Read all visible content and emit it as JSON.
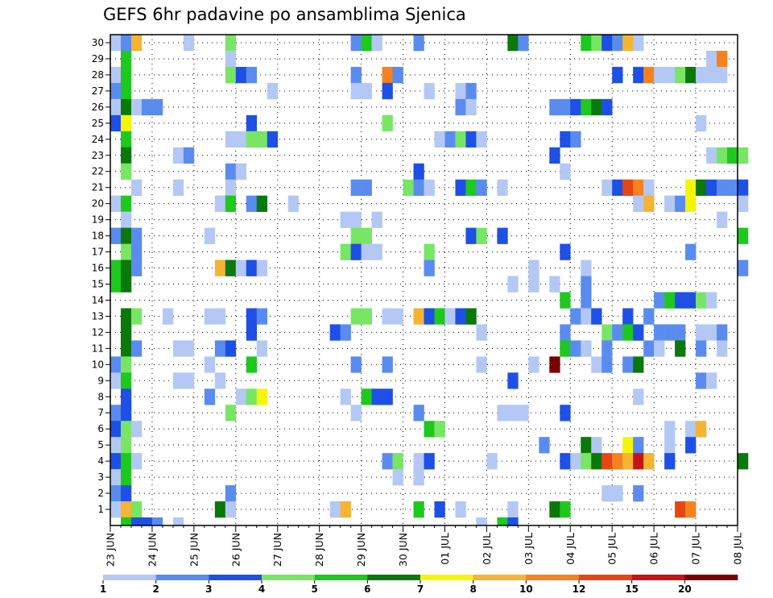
{
  "chart_data": {
    "type": "heatmap",
    "title": "GEFS 6hr padavine po ansamblima Sjenica",
    "xlabel": "",
    "ylabel": "",
    "members": [
      1,
      2,
      3,
      4,
      5,
      6,
      7,
      8,
      9,
      10,
      11,
      12,
      13,
      14,
      15,
      16,
      17,
      18,
      19,
      20,
      21,
      22,
      23,
      24,
      25,
      26,
      27,
      28,
      29,
      30
    ],
    "x_tick_labels": [
      "23 JUN",
      "24 JUN",
      "25 JUN",
      "26 JUN",
      "27 JUN",
      "28 JUN",
      "29 JUN",
      "30 JUN",
      "01 JUL",
      "02 JUL",
      "03 JUL",
      "04 JUL",
      "05 JUL",
      "06 JUL",
      "07 JUL",
      "08 JUL"
    ],
    "steps_per_day": 4,
    "n_steps": 61,
    "grid": true,
    "color_bins": [
      {
        "from": 1,
        "to": 2,
        "color": "#b4c8f5"
      },
      {
        "from": 2,
        "to": 3,
        "color": "#5a8cf0"
      },
      {
        "from": 3,
        "to": 4,
        "color": "#1e50e6"
      },
      {
        "from": 4,
        "to": 5,
        "color": "#78e664"
      },
      {
        "from": 5,
        "to": 6,
        "color": "#1ec81e"
      },
      {
        "from": 6,
        "to": 7,
        "color": "#0a780a"
      },
      {
        "from": 7,
        "to": 8,
        "color": "#f5f50a"
      },
      {
        "from": 8,
        "to": 10,
        "color": "#f5b432"
      },
      {
        "from": 10,
        "to": 12,
        "color": "#f5821e"
      },
      {
        "from": 12,
        "to": 15,
        "color": "#e64614"
      },
      {
        "from": 15,
        "to": 20,
        "color": "#c81414"
      },
      {
        "from": 20,
        "to": 30,
        "color": "#780000"
      }
    ],
    "legend_labels": [
      "1",
      "2",
      "3",
      "4",
      "5",
      "6",
      "7",
      "8",
      "10",
      "12",
      "15",
      "20"
    ],
    "cells": [
      [
        30,
        0,
        1.5
      ],
      [
        30,
        1,
        2.5
      ],
      [
        30,
        2,
        9
      ],
      [
        30,
        7,
        1.5
      ],
      [
        30,
        11,
        4.5
      ],
      [
        30,
        23,
        2.5
      ],
      [
        30,
        24,
        5.5
      ],
      [
        30,
        25,
        1.5
      ],
      [
        30,
        29,
        2.5
      ],
      [
        30,
        38,
        6.5
      ],
      [
        30,
        39,
        2.5
      ],
      [
        30,
        45,
        5.5
      ],
      [
        30,
        46,
        4.5
      ],
      [
        30,
        47,
        3.5
      ],
      [
        30,
        48,
        2.5
      ],
      [
        30,
        49,
        9
      ],
      [
        30,
        50,
        1.5
      ],
      [
        29,
        1,
        5.5
      ],
      [
        29,
        11,
        1.5
      ],
      [
        29,
        57,
        1.5
      ],
      [
        29,
        58,
        11
      ],
      [
        28,
        0,
        1.5
      ],
      [
        28,
        1,
        5.5
      ],
      [
        28,
        11,
        4.5
      ],
      [
        28,
        12,
        3.5
      ],
      [
        28,
        13,
        2.5
      ],
      [
        28,
        23,
        2.5
      ],
      [
        28,
        26,
        11
      ],
      [
        28,
        27,
        2.5
      ],
      [
        28,
        48,
        3.5
      ],
      [
        28,
        50,
        3.5
      ],
      [
        28,
        51,
        11
      ],
      [
        28,
        52,
        1.5
      ],
      [
        28,
        53,
        1.5
      ],
      [
        28,
        54,
        4.5
      ],
      [
        28,
        55,
        6.5
      ],
      [
        28,
        56,
        1.5
      ],
      [
        28,
        57,
        1.5
      ],
      [
        28,
        58,
        1.5
      ],
      [
        27,
        0,
        2.5
      ],
      [
        27,
        1,
        5.5
      ],
      [
        27,
        15,
        1.5
      ],
      [
        27,
        23,
        1.5
      ],
      [
        27,
        24,
        1.5
      ],
      [
        27,
        26,
        3.5
      ],
      [
        27,
        30,
        1.5
      ],
      [
        27,
        33,
        1.5
      ],
      [
        27,
        34,
        2.5
      ],
      [
        26,
        0,
        1.5
      ],
      [
        26,
        1,
        6.5
      ],
      [
        26,
        2,
        1.5
      ],
      [
        26,
        3,
        2.5
      ],
      [
        26,
        4,
        2.5
      ],
      [
        26,
        42,
        2.5
      ],
      [
        26,
        43,
        2.5
      ],
      [
        26,
        44,
        3.5
      ],
      [
        26,
        45,
        5.5
      ],
      [
        26,
        46,
        6.5
      ],
      [
        26,
        47,
        3.5
      ],
      [
        26,
        33,
        2.5
      ],
      [
        26,
        34,
        1.5
      ],
      [
        25,
        0,
        3.5
      ],
      [
        25,
        1,
        7.5
      ],
      [
        25,
        13,
        3.5
      ],
      [
        25,
        26,
        4.5
      ],
      [
        25,
        56,
        1.5
      ],
      [
        24,
        1,
        5.5
      ],
      [
        24,
        11,
        1.5
      ],
      [
        24,
        12,
        1.5
      ],
      [
        24,
        13,
        4.5
      ],
      [
        24,
        14,
        4.5
      ],
      [
        24,
        15,
        3.5
      ],
      [
        24,
        31,
        1.5
      ],
      [
        24,
        32,
        2.5
      ],
      [
        24,
        33,
        4.5
      ],
      [
        24,
        34,
        3.5
      ],
      [
        24,
        35,
        1.5
      ],
      [
        24,
        43,
        3.5
      ],
      [
        24,
        44,
        2.5
      ],
      [
        23,
        1,
        6.5
      ],
      [
        23,
        6,
        1.5
      ],
      [
        23,
        7,
        2.5
      ],
      [
        23,
        42,
        3.5
      ],
      [
        23,
        57,
        1.5
      ],
      [
        23,
        58,
        4.5
      ],
      [
        23,
        59,
        5.5
      ],
      [
        23,
        60,
        4.5
      ],
      [
        22,
        1,
        4.5
      ],
      [
        22,
        11,
        2.5
      ],
      [
        22,
        12,
        1.5
      ],
      [
        22,
        29,
        3.5
      ],
      [
        22,
        43,
        1.5
      ],
      [
        21,
        2,
        1.5
      ],
      [
        21,
        6,
        1.5
      ],
      [
        21,
        11,
        1.5
      ],
      [
        21,
        23,
        2.5
      ],
      [
        21,
        24,
        2.5
      ],
      [
        21,
        28,
        4.5
      ],
      [
        21,
        29,
        2.5
      ],
      [
        21,
        30,
        1.5
      ],
      [
        21,
        33,
        3.5
      ],
      [
        21,
        34,
        5.5
      ],
      [
        21,
        35,
        2.5
      ],
      [
        21,
        37,
        1.5
      ],
      [
        21,
        47,
        1.5
      ],
      [
        21,
        48,
        3.5
      ],
      [
        21,
        49,
        13
      ],
      [
        21,
        50,
        11
      ],
      [
        21,
        51,
        1.5
      ],
      [
        21,
        55,
        7.5
      ],
      [
        21,
        56,
        6.5
      ],
      [
        21,
        57,
        3.5
      ],
      [
        21,
        58,
        2.5
      ],
      [
        21,
        59,
        2.5
      ],
      [
        21,
        60,
        3.5
      ],
      [
        20,
        0,
        1.5
      ],
      [
        20,
        1,
        5.5
      ],
      [
        20,
        10,
        1.5
      ],
      [
        20,
        11,
        5.5
      ],
      [
        20,
        13,
        2.5
      ],
      [
        20,
        14,
        6.5
      ],
      [
        20,
        17,
        1.5
      ],
      [
        20,
        50,
        1.5
      ],
      [
        20,
        51,
        9
      ],
      [
        20,
        53,
        1.5
      ],
      [
        20,
        54,
        2.5
      ],
      [
        20,
        55,
        7.5
      ],
      [
        20,
        60,
        1.5
      ],
      [
        19,
        1,
        1.5
      ],
      [
        19,
        22,
        1.5
      ],
      [
        19,
        23,
        1.5
      ],
      [
        19,
        25,
        1.5
      ],
      [
        19,
        58,
        1.5
      ],
      [
        18,
        0,
        2.5
      ],
      [
        18,
        1,
        6.5
      ],
      [
        18,
        2,
        2.5
      ],
      [
        18,
        9,
        1.5
      ],
      [
        18,
        23,
        4.5
      ],
      [
        18,
        24,
        4.5
      ],
      [
        18,
        34,
        3.5
      ],
      [
        18,
        35,
        4.5
      ],
      [
        18,
        37,
        3.5
      ],
      [
        18,
        60,
        5.5
      ],
      [
        17,
        1,
        4.5
      ],
      [
        17,
        2,
        2.5
      ],
      [
        17,
        22,
        4.5
      ],
      [
        17,
        23,
        3.5
      ],
      [
        17,
        24,
        1.5
      ],
      [
        17,
        25,
        1.5
      ],
      [
        17,
        30,
        4.5
      ],
      [
        17,
        43,
        3.5
      ],
      [
        17,
        55,
        2.5
      ],
      [
        16,
        0,
        5.5
      ],
      [
        16,
        1,
        6.5
      ],
      [
        16,
        2,
        2.5
      ],
      [
        16,
        10,
        9
      ],
      [
        16,
        11,
        6.5
      ],
      [
        16,
        12,
        1.5
      ],
      [
        16,
        13,
        3.5
      ],
      [
        16,
        14,
        1.5
      ],
      [
        16,
        30,
        2.5
      ],
      [
        16,
        40,
        1.5
      ],
      [
        16,
        45,
        1.5
      ],
      [
        16,
        60,
        2.5
      ],
      [
        15,
        0,
        5.5
      ],
      [
        15,
        1,
        6.5
      ],
      [
        15,
        38,
        1.5
      ],
      [
        15,
        40,
        1.5
      ],
      [
        15,
        42,
        1.5
      ],
      [
        15,
        45,
        2.5
      ],
      [
        14,
        45,
        2.5
      ],
      [
        14,
        43,
        5.5
      ],
      [
        14,
        52,
        2.5
      ],
      [
        14,
        53,
        5.5
      ],
      [
        14,
        54,
        3.5
      ],
      [
        14,
        55,
        3.5
      ],
      [
        14,
        56,
        4.5
      ],
      [
        14,
        57,
        1.5
      ],
      [
        13,
        1,
        6.5
      ],
      [
        13,
        2,
        4.5
      ],
      [
        13,
        5,
        1.5
      ],
      [
        13,
        9,
        1.5
      ],
      [
        13,
        10,
        1.5
      ],
      [
        13,
        13,
        3.5
      ],
      [
        13,
        14,
        2.5
      ],
      [
        13,
        23,
        4.5
      ],
      [
        13,
        24,
        4.5
      ],
      [
        13,
        26,
        1.5
      ],
      [
        13,
        27,
        1.5
      ],
      [
        13,
        29,
        9
      ],
      [
        13,
        30,
        3.5
      ],
      [
        13,
        31,
        5.5
      ],
      [
        13,
        32,
        1.5
      ],
      [
        13,
        33,
        3.5
      ],
      [
        13,
        34,
        6.5
      ],
      [
        13,
        44,
        2.5
      ],
      [
        13,
        45,
        1.5
      ],
      [
        13,
        46,
        3.5
      ],
      [
        13,
        49,
        3.5
      ],
      [
        13,
        51,
        2.5
      ],
      [
        12,
        1,
        6.5
      ],
      [
        12,
        13,
        3.5
      ],
      [
        12,
        21,
        3.5
      ],
      [
        12,
        22,
        2.5
      ],
      [
        12,
        35,
        1.5
      ],
      [
        12,
        43,
        2.5
      ],
      [
        12,
        47,
        4.5
      ],
      [
        12,
        48,
        2.5
      ],
      [
        12,
        49,
        5.5
      ],
      [
        12,
        50,
        3.5
      ],
      [
        12,
        52,
        2.5
      ],
      [
        12,
        53,
        2.5
      ],
      [
        12,
        54,
        2.5
      ],
      [
        12,
        56,
        1.5
      ],
      [
        12,
        57,
        1.5
      ],
      [
        12,
        58,
        2.5
      ],
      [
        11,
        1,
        6.5
      ],
      [
        11,
        2,
        2.5
      ],
      [
        11,
        6,
        1.5
      ],
      [
        11,
        7,
        1.5
      ],
      [
        11,
        10,
        2.5
      ],
      [
        11,
        11,
        3.5
      ],
      [
        11,
        14,
        1.5
      ],
      [
        11,
        43,
        5.5
      ],
      [
        11,
        44,
        2.5
      ],
      [
        11,
        45,
        1.5
      ],
      [
        11,
        47,
        2.5
      ],
      [
        11,
        51,
        2.5
      ],
      [
        11,
        52,
        1.5
      ],
      [
        11,
        54,
        6.5
      ],
      [
        11,
        56,
        2.5
      ],
      [
        11,
        58,
        1.5
      ],
      [
        10,
        0,
        2.5
      ],
      [
        10,
        1,
        4.5
      ],
      [
        10,
        9,
        1.5
      ],
      [
        10,
        13,
        5.5
      ],
      [
        10,
        23,
        2.5
      ],
      [
        10,
        26,
        2.5
      ],
      [
        10,
        35,
        1.5
      ],
      [
        10,
        40,
        1.5
      ],
      [
        10,
        42,
        25
      ],
      [
        10,
        46,
        1.5
      ],
      [
        10,
        47,
        2.5
      ],
      [
        10,
        49,
        2.5
      ],
      [
        10,
        50,
        6.5
      ],
      [
        9,
        0,
        1.5
      ],
      [
        9,
        1,
        5.5
      ],
      [
        9,
        6,
        1.5
      ],
      [
        9,
        7,
        1.5
      ],
      [
        9,
        10,
        1.5
      ],
      [
        9,
        38,
        3.5
      ],
      [
        9,
        56,
        2.5
      ],
      [
        9,
        57,
        1.5
      ],
      [
        8,
        1,
        3.5
      ],
      [
        8,
        9,
        2.5
      ],
      [
        8,
        12,
        1.5
      ],
      [
        8,
        13,
        4.5
      ],
      [
        8,
        14,
        7.5
      ],
      [
        8,
        22,
        1.5
      ],
      [
        8,
        24,
        5.5
      ],
      [
        8,
        25,
        3.5
      ],
      [
        8,
        26,
        3.5
      ],
      [
        8,
        50,
        1.5
      ],
      [
        7,
        0,
        2.5
      ],
      [
        7,
        1,
        3.5
      ],
      [
        7,
        11,
        4.5
      ],
      [
        7,
        23,
        1.5
      ],
      [
        7,
        29,
        2.5
      ],
      [
        7,
        37,
        1.5
      ],
      [
        7,
        38,
        1.5
      ],
      [
        7,
        39,
        1.5
      ],
      [
        7,
        43,
        3.5
      ],
      [
        6,
        0,
        3.5
      ],
      [
        6,
        1,
        4.5
      ],
      [
        6,
        2,
        1.5
      ],
      [
        6,
        30,
        5.5
      ],
      [
        6,
        31,
        4.5
      ],
      [
        6,
        53,
        1.5
      ],
      [
        6,
        55,
        1.5
      ],
      [
        6,
        56,
        9
      ],
      [
        5,
        0,
        1.5
      ],
      [
        5,
        1,
        4.5
      ],
      [
        5,
        41,
        2.5
      ],
      [
        5,
        45,
        6.5
      ],
      [
        5,
        46,
        1.5
      ],
      [
        5,
        49,
        7.5
      ],
      [
        5,
        50,
        2.5
      ],
      [
        5,
        53,
        1.5
      ],
      [
        5,
        55,
        3.5
      ],
      [
        4,
        0,
        3.5
      ],
      [
        4,
        1,
        5.5
      ],
      [
        4,
        2,
        1.5
      ],
      [
        4,
        26,
        2.5
      ],
      [
        4,
        27,
        4.5
      ],
      [
        4,
        29,
        1.5
      ],
      [
        4,
        30,
        3.5
      ],
      [
        4,
        36,
        1.5
      ],
      [
        4,
        43,
        3.5
      ],
      [
        4,
        44,
        1.5
      ],
      [
        4,
        45,
        4.5
      ],
      [
        4,
        46,
        6.5
      ],
      [
        4,
        47,
        13
      ],
      [
        4,
        48,
        11
      ],
      [
        4,
        49,
        9
      ],
      [
        4,
        50,
        17
      ],
      [
        4,
        51,
        9
      ],
      [
        4,
        53,
        3.5
      ],
      [
        4,
        60,
        6.5
      ],
      [
        3,
        0,
        1.5
      ],
      [
        3,
        1,
        5.5
      ],
      [
        3,
        27,
        1.5
      ],
      [
        3,
        29,
        1.5
      ],
      [
        2,
        0,
        2.5
      ],
      [
        2,
        1,
        3.5
      ],
      [
        2,
        11,
        2.5
      ],
      [
        2,
        47,
        1.5
      ],
      [
        2,
        48,
        1.5
      ],
      [
        2,
        50,
        2.5
      ],
      [
        1,
        0,
        1.5
      ],
      [
        1,
        1,
        9
      ],
      [
        1,
        2,
        4.5
      ],
      [
        1,
        10,
        6.5
      ],
      [
        1,
        11,
        1.5
      ],
      [
        1,
        21,
        1.5
      ],
      [
        1,
        22,
        9
      ],
      [
        1,
        29,
        5.5
      ],
      [
        1,
        31,
        3.5
      ],
      [
        1,
        33,
        1.5
      ],
      [
        1,
        38,
        1.5
      ],
      [
        1,
        42,
        6.5
      ],
      [
        1,
        43,
        5.5
      ],
      [
        1,
        54,
        13
      ],
      [
        1,
        55,
        11
      ],
      [
        0,
        1,
        5.5
      ],
      [
        0,
        2,
        3.5
      ],
      [
        0,
        3,
        3.5
      ],
      [
        0,
        4,
        2.5
      ],
      [
        0,
        6,
        1.5
      ],
      [
        0,
        35,
        1.5
      ],
      [
        0,
        37,
        5.5
      ],
      [
        0,
        38,
        3.5
      ]
    ]
  }
}
